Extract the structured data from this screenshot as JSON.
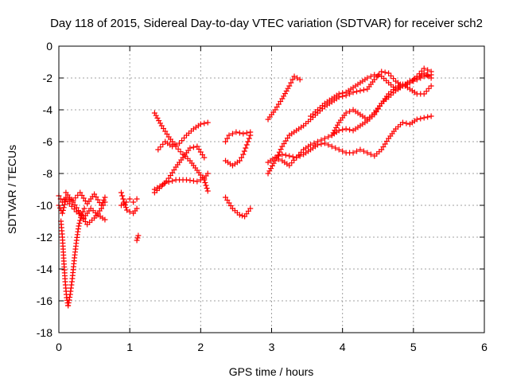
{
  "chart_data": {
    "type": "scatter",
    "title": "Day 118 of 2015, Sidereal Day-to-day VTEC variation (SDTVAR) for receiver sch2",
    "xlabel": "GPS time / hours",
    "ylabel": "SDTVAR / TECUs",
    "xlim": [
      0,
      6
    ],
    "ylim": [
      -18,
      0
    ],
    "xticks": [
      0,
      1,
      2,
      3,
      4,
      5,
      6
    ],
    "yticks": [
      0,
      -2,
      -4,
      -6,
      -8,
      -10,
      -12,
      -14,
      -16,
      -18
    ],
    "grid": true,
    "marker": "+",
    "color": "#ff0000",
    "tracks": [
      [
        [
          0.0,
          -9.4
        ],
        [
          0.05,
          -9.8
        ],
        [
          0.1,
          -9.5
        ],
        [
          0.2,
          -9.7
        ],
        [
          0.3,
          -9.2
        ],
        [
          0.4,
          -9.9
        ],
        [
          0.5,
          -9.3
        ],
        [
          0.6,
          -10.0
        ],
        [
          0.65,
          -9.5
        ]
      ],
      [
        [
          0.0,
          -10.0
        ],
        [
          0.05,
          -10.5
        ],
        [
          0.1,
          -9.6
        ],
        [
          0.15,
          -9.9
        ],
        [
          0.25,
          -10.4
        ],
        [
          0.35,
          -10.8
        ],
        [
          0.45,
          -10.2
        ],
        [
          0.55,
          -10.6
        ],
        [
          0.65,
          -10.9
        ]
      ],
      [
        [
          0.1,
          -9.2
        ],
        [
          0.2,
          -9.8
        ],
        [
          0.3,
          -10.5
        ],
        [
          0.4,
          -11.2
        ],
        [
          0.5,
          -10.8
        ],
        [
          0.6,
          -10.2
        ],
        [
          0.65,
          -9.8
        ]
      ],
      [
        [
          0.03,
          -11.0
        ],
        [
          0.05,
          -12.0
        ],
        [
          0.07,
          -13.5
        ],
        [
          0.09,
          -14.8
        ],
        [
          0.11,
          -15.8
        ],
        [
          0.13,
          -16.3
        ]
      ],
      [
        [
          0.13,
          -16.3
        ],
        [
          0.16,
          -15.6
        ],
        [
          0.19,
          -14.6
        ],
        [
          0.22,
          -13.3
        ],
        [
          0.25,
          -12.2
        ],
        [
          0.28,
          -11.3
        ],
        [
          0.32,
          -10.6
        ],
        [
          0.36,
          -10.2
        ]
      ],
      [
        [
          0.88,
          -9.2
        ],
        [
          0.92,
          -9.8
        ],
        [
          0.96,
          -10.3
        ],
        [
          1.0,
          -10.4
        ],
        [
          1.05,
          -10.5
        ],
        [
          1.1,
          -10.2
        ]
      ],
      [
        [
          0.88,
          -10.0
        ],
        [
          0.95,
          -9.8
        ],
        [
          1.0,
          -9.6
        ],
        [
          1.05,
          -9.8
        ],
        [
          1.1,
          -9.6
        ]
      ],
      [
        [
          1.1,
          -12.2
        ],
        [
          1.12,
          -11.9
        ]
      ],
      [
        [
          1.35,
          -4.2
        ],
        [
          1.45,
          -5.0
        ],
        [
          1.55,
          -5.7
        ],
        [
          1.65,
          -6.3
        ],
        [
          1.75,
          -6.8
        ],
        [
          1.85,
          -7.2
        ],
        [
          1.95,
          -7.8
        ],
        [
          2.05,
          -8.4
        ],
        [
          2.1,
          -9.1
        ]
      ],
      [
        [
          1.35,
          -9.2
        ],
        [
          1.45,
          -8.8
        ],
        [
          1.55,
          -8.3
        ],
        [
          1.65,
          -7.6
        ],
        [
          1.75,
          -7.0
        ],
        [
          1.85,
          -6.4
        ],
        [
          1.95,
          -6.3
        ],
        [
          2.05,
          -7.0
        ]
      ],
      [
        [
          1.4,
          -6.5
        ],
        [
          1.5,
          -6.0
        ],
        [
          1.6,
          -6.3
        ],
        [
          1.7,
          -6.1
        ],
        [
          1.8,
          -5.6
        ],
        [
          1.9,
          -5.2
        ],
        [
          2.0,
          -4.9
        ],
        [
          2.1,
          -4.8
        ]
      ],
      [
        [
          1.35,
          -9.0
        ],
        [
          1.5,
          -8.6
        ],
        [
          1.65,
          -8.4
        ],
        [
          1.8,
          -8.4
        ],
        [
          1.95,
          -8.5
        ],
        [
          2.05,
          -8.3
        ],
        [
          2.1,
          -8.0
        ]
      ],
      [
        [
          2.35,
          -6.0
        ],
        [
          2.4,
          -5.6
        ],
        [
          2.5,
          -5.4
        ],
        [
          2.6,
          -5.5
        ],
        [
          2.7,
          -5.4
        ]
      ],
      [
        [
          2.35,
          -7.2
        ],
        [
          2.45,
          -7.5
        ],
        [
          2.55,
          -7.2
        ],
        [
          2.6,
          -6.8
        ],
        [
          2.65,
          -6.2
        ],
        [
          2.7,
          -5.6
        ]
      ],
      [
        [
          2.35,
          -9.5
        ],
        [
          2.45,
          -10.2
        ],
        [
          2.55,
          -10.6
        ],
        [
          2.62,
          -10.7
        ],
        [
          2.7,
          -10.2
        ]
      ],
      [
        [
          2.95,
          -4.6
        ],
        [
          3.05,
          -4.0
        ],
        [
          3.15,
          -3.3
        ],
        [
          3.25,
          -2.5
        ],
        [
          3.32,
          -1.9
        ],
        [
          3.4,
          -2.1
        ]
      ],
      [
        [
          2.95,
          -8.0
        ],
        [
          3.05,
          -7.2
        ],
        [
          3.15,
          -6.3
        ],
        [
          3.25,
          -5.6
        ],
        [
          3.35,
          -5.3
        ],
        [
          3.45,
          -5.0
        ],
        [
          3.55,
          -4.6
        ],
        [
          3.65,
          -4.2
        ],
        [
          3.75,
          -3.8
        ],
        [
          3.85,
          -3.5
        ],
        [
          3.95,
          -3.2
        ],
        [
          4.05,
          -3.1
        ],
        [
          4.15,
          -2.9
        ],
        [
          4.25,
          -2.8
        ],
        [
          4.35,
          -2.7
        ],
        [
          4.45,
          -2.1
        ],
        [
          4.55,
          -1.6
        ],
        [
          4.65,
          -1.7
        ],
        [
          4.75,
          -2.2
        ],
        [
          4.85,
          -2.5
        ],
        [
          4.95,
          -2.3
        ],
        [
          5.05,
          -1.9
        ],
        [
          5.15,
          -1.4
        ],
        [
          5.25,
          -1.6
        ]
      ],
      [
        [
          2.95,
          -7.3
        ],
        [
          3.05,
          -7.0
        ],
        [
          3.15,
          -7.2
        ],
        [
          3.25,
          -7.5
        ],
        [
          3.35,
          -7.0
        ],
        [
          3.45,
          -6.5
        ],
        [
          3.55,
          -6.2
        ],
        [
          3.65,
          -6.0
        ],
        [
          3.75,
          -5.8
        ],
        [
          3.85,
          -5.6
        ],
        [
          3.95,
          -5.3
        ],
        [
          4.05,
          -5.2
        ],
        [
          4.15,
          -5.3
        ],
        [
          4.25,
          -5.0
        ],
        [
          4.35,
          -4.7
        ],
        [
          4.45,
          -4.3
        ],
        [
          4.55,
          -3.6
        ],
        [
          4.65,
          -3.2
        ],
        [
          4.75,
          -2.8
        ],
        [
          4.85,
          -2.5
        ],
        [
          4.95,
          -2.3
        ],
        [
          5.05,
          -2.1
        ],
        [
          5.15,
          -1.9
        ],
        [
          5.25,
          -1.8
        ]
      ],
      [
        [
          3.05,
          -7.0
        ],
        [
          3.15,
          -6.8
        ],
        [
          3.25,
          -6.9
        ],
        [
          3.35,
          -7.0
        ],
        [
          3.45,
          -6.8
        ],
        [
          3.55,
          -6.5
        ],
        [
          3.65,
          -6.2
        ],
        [
          3.75,
          -6.1
        ],
        [
          3.85,
          -6.3
        ],
        [
          3.95,
          -6.5
        ],
        [
          4.05,
          -6.7
        ],
        [
          4.15,
          -6.7
        ],
        [
          4.25,
          -6.5
        ],
        [
          4.35,
          -6.7
        ],
        [
          4.45,
          -6.9
        ],
        [
          4.55,
          -6.5
        ],
        [
          4.65,
          -5.8
        ],
        [
          4.75,
          -5.2
        ],
        [
          4.85,
          -4.8
        ],
        [
          4.95,
          -4.9
        ],
        [
          5.05,
          -4.6
        ],
        [
          5.15,
          -4.5
        ],
        [
          5.25,
          -4.4
        ]
      ],
      [
        [
          3.85,
          -5.6
        ],
        [
          3.95,
          -4.8
        ],
        [
          4.05,
          -4.2
        ],
        [
          4.15,
          -4.0
        ],
        [
          4.25,
          -4.3
        ],
        [
          4.35,
          -4.6
        ],
        [
          4.45,
          -4.2
        ],
        [
          4.55,
          -3.6
        ],
        [
          4.65,
          -3.0
        ],
        [
          4.75,
          -2.6
        ],
        [
          4.85,
          -2.4
        ],
        [
          4.95,
          -2.7
        ],
        [
          5.05,
          -3.0
        ],
        [
          5.15,
          -3.0
        ],
        [
          5.25,
          -2.5
        ]
      ],
      [
        [
          3.55,
          -4.4
        ],
        [
          3.65,
          -4.0
        ],
        [
          3.75,
          -3.6
        ],
        [
          3.85,
          -3.3
        ],
        [
          3.95,
          -3.0
        ],
        [
          4.05,
          -2.9
        ],
        [
          4.15,
          -2.6
        ],
        [
          4.25,
          -2.3
        ],
        [
          4.35,
          -2.0
        ],
        [
          4.45,
          -1.8
        ],
        [
          4.55,
          -1.9
        ],
        [
          4.65,
          -2.3
        ],
        [
          4.75,
          -2.7
        ],
        [
          4.85,
          -2.5
        ],
        [
          4.95,
          -2.2
        ],
        [
          5.05,
          -2.0
        ],
        [
          5.15,
          -1.7
        ],
        [
          5.25,
          -2.0
        ]
      ]
    ]
  }
}
